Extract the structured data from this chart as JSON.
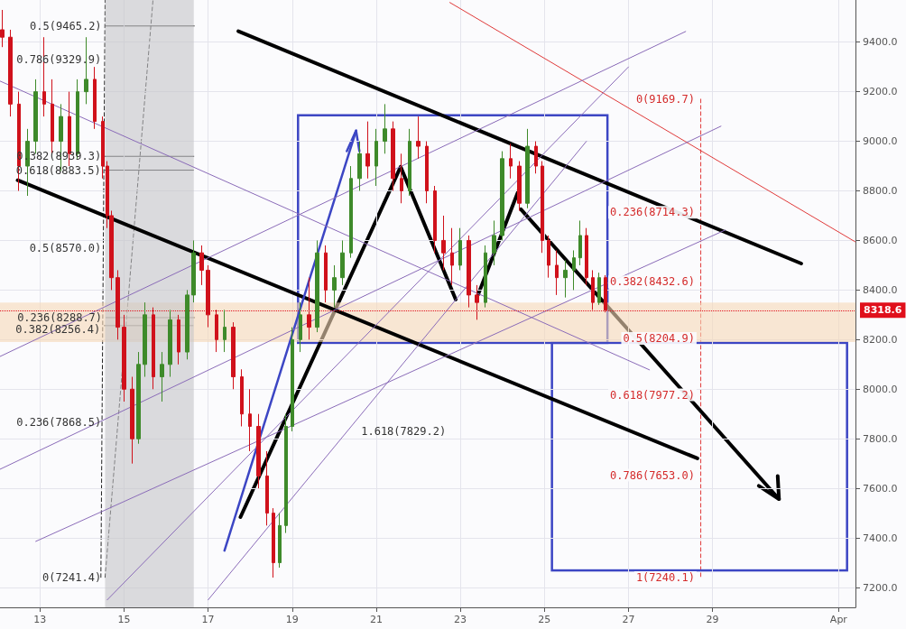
{
  "chart_data": {
    "type": "candlestick",
    "x": [
      12.1,
      12.3,
      12.5,
      12.7,
      12.9,
      13.1,
      13.3,
      13.5,
      13.7,
      13.9,
      14.1,
      14.3,
      14.5,
      14.6,
      14.7,
      14.85,
      15.0,
      15.2,
      15.35,
      15.5,
      15.7,
      15.9,
      16.1,
      16.3,
      16.5,
      16.65,
      16.85,
      17.0,
      17.2,
      17.4,
      17.6,
      17.8,
      18.0,
      18.2,
      18.4,
      18.55,
      18.7,
      18.85,
      19.0,
      19.2,
      19.4,
      19.6,
      19.8,
      20.0,
      20.2,
      20.4,
      20.6,
      20.8,
      21.0,
      21.2,
      21.4,
      21.6,
      21.8,
      22.0,
      22.2,
      22.4,
      22.6,
      22.8,
      23.0,
      23.2,
      23.4,
      23.6,
      23.8,
      24.0,
      24.2,
      24.4,
      24.6,
      24.8,
      24.95,
      25.1,
      25.3,
      25.5,
      25.7,
      25.85,
      26.0,
      26.15,
      26.3,
      26.45
    ],
    "ohlc": [
      [
        9450,
        9530,
        9380,
        9420
      ],
      [
        9420,
        9450,
        9100,
        9150
      ],
      [
        9150,
        9200,
        8800,
        8900
      ],
      [
        8900,
        9050,
        8780,
        9000
      ],
      [
        9000,
        9250,
        8950,
        9200
      ],
      [
        9200,
        9420,
        9100,
        9150
      ],
      [
        9150,
        9250,
        8950,
        9000
      ],
      [
        9000,
        9150,
        8880,
        9100
      ],
      [
        9100,
        9200,
        8900,
        8950
      ],
      [
        8950,
        9250,
        8930,
        9200
      ],
      [
        9200,
        9420,
        9150,
        9250
      ],
      [
        9250,
        9300,
        9050,
        9080
      ],
      [
        9080,
        9100,
        8850,
        8900
      ],
      [
        8900,
        8920,
        8650,
        8700
      ],
      [
        8700,
        8720,
        8400,
        8450
      ],
      [
        8450,
        8480,
        8200,
        8250
      ],
      [
        8250,
        8300,
        7950,
        8000
      ],
      [
        8000,
        8050,
        7700,
        7800
      ],
      [
        7800,
        8150,
        7780,
        8100
      ],
      [
        8100,
        8350,
        8050,
        8300
      ],
      [
        8300,
        8330,
        8000,
        8050
      ],
      [
        8050,
        8150,
        7950,
        8100
      ],
      [
        8100,
        8320,
        8050,
        8280
      ],
      [
        8280,
        8300,
        8100,
        8150
      ],
      [
        8150,
        8400,
        8120,
        8380
      ],
      [
        8380,
        8600,
        8350,
        8550
      ],
      [
        8550,
        8580,
        8420,
        8480
      ],
      [
        8480,
        8500,
        8250,
        8300
      ],
      [
        8300,
        8320,
        8150,
        8200
      ],
      [
        8200,
        8320,
        8150,
        8250
      ],
      [
        8250,
        8270,
        8000,
        8050
      ],
      [
        8050,
        8080,
        7850,
        7900
      ],
      [
        7900,
        8000,
        7750,
        7850
      ],
      [
        7850,
        7900,
        7600,
        7650
      ],
      [
        7650,
        7750,
        7450,
        7500
      ],
      [
        7500,
        7520,
        7240,
        7300
      ],
      [
        7300,
        7500,
        7280,
        7450
      ],
      [
        7450,
        7900,
        7420,
        7850
      ],
      [
        7850,
        8250,
        7830,
        8200
      ],
      [
        8200,
        8350,
        8150,
        8300
      ],
      [
        8300,
        8450,
        8200,
        8250
      ],
      [
        8250,
        8600,
        8230,
        8550
      ],
      [
        8550,
        8580,
        8350,
        8400
      ],
      [
        8400,
        8500,
        8330,
        8450
      ],
      [
        8450,
        8600,
        8420,
        8550
      ],
      [
        8550,
        8900,
        8530,
        8850
      ],
      [
        8850,
        9000,
        8800,
        8950
      ],
      [
        8950,
        9080,
        8850,
        8900
      ],
      [
        8900,
        9050,
        8820,
        9000
      ],
      [
        9000,
        9150,
        8950,
        9050
      ],
      [
        9050,
        9080,
        8800,
        8850
      ],
      [
        8850,
        8950,
        8750,
        8800
      ],
      [
        8800,
        9050,
        8780,
        9000
      ],
      [
        9000,
        9100,
        8930,
        8980
      ],
      [
        8980,
        9000,
        8750,
        8800
      ],
      [
        8800,
        8820,
        8550,
        8600
      ],
      [
        8600,
        8700,
        8480,
        8550
      ],
      [
        8550,
        8650,
        8420,
        8500
      ],
      [
        8500,
        8650,
        8480,
        8600
      ],
      [
        8600,
        8620,
        8330,
        8380
      ],
      [
        8380,
        8420,
        8280,
        8350
      ],
      [
        8350,
        8580,
        8330,
        8550
      ],
      [
        8550,
        8680,
        8500,
        8620
      ],
      [
        8620,
        8960,
        8600,
        8930
      ],
      [
        8930,
        8990,
        8850,
        8900
      ],
      [
        8900,
        8920,
        8720,
        8750
      ],
      [
        8750,
        9050,
        8730,
        8980
      ],
      [
        8980,
        9000,
        8870,
        8900
      ],
      [
        8900,
        8920,
        8550,
        8600
      ],
      [
        8600,
        8620,
        8450,
        8500
      ],
      [
        8500,
        8560,
        8380,
        8450
      ],
      [
        8450,
        8520,
        8370,
        8480
      ],
      [
        8480,
        8560,
        8400,
        8530
      ],
      [
        8530,
        8680,
        8500,
        8620
      ],
      [
        8620,
        8650,
        8420,
        8450
      ],
      [
        8450,
        8480,
        8320,
        8350
      ],
      [
        8350,
        8470,
        8340,
        8450
      ],
      [
        8450,
        8460,
        8310,
        8318.6
      ]
    ],
    "series": [
      {
        "type": "line",
        "color": "#000000",
        "x": [
          17.72,
          31.11
        ],
        "values": [
          9444,
          8507
        ]
      },
      {
        "type": "line",
        "color": "#000000",
        "x": [
          12.47,
          28.64
        ],
        "values": [
          8843,
          7721
        ]
      },
      {
        "type": "line",
        "color": "#e03a3a",
        "x": [
          22.75,
          32.39
        ],
        "values": [
          9560,
          8595
        ]
      },
      {
        "type": "line",
        "color": "#3c46c4",
        "x": [
          17.39,
          20.52
        ],
        "values": [
          7349,
          9043
        ]
      },
      {
        "type": "line",
        "color": "#8a6bb8",
        "x": [
          12.05,
          28.36
        ],
        "values": [
          8132,
          9443
        ]
      },
      {
        "type": "line",
        "color": "#8a6bb8",
        "x": [
          12.05,
          29.2
        ],
        "values": [
          7677,
          9061
        ]
      },
      {
        "type": "line",
        "color": "#8a6bb8",
        "x": [
          12.9,
          29.3
        ],
        "values": [
          7386,
          8642
        ]
      },
      {
        "type": "line",
        "color": "#8a6bb8",
        "x": [
          12.05,
          27.5
        ],
        "values": [
          9243,
          8078
        ]
      },
      {
        "type": "line",
        "color": "#8a6bb8",
        "x": [
          14.6,
          27.0
        ],
        "values": [
          7150,
          9300
        ]
      },
      {
        "type": "line",
        "color": "#8a6bb8",
        "x": [
          17.0,
          26.0
        ],
        "values": [
          7150,
          9000
        ]
      }
    ],
    "xlim": [
      12.05,
      32.4
    ],
    "xticks": [
      13,
      15,
      17,
      19,
      21,
      23,
      25,
      27,
      29,
      {
        "value": 32,
        "label": "Apr"
      }
    ],
    "ylim": [
      7120,
      9570
    ],
    "yticks": [
      {
        "value": 7200,
        "label": "7200.0"
      },
      {
        "value": 7400,
        "label": "7400.0"
      },
      {
        "value": 7600,
        "label": "7600.0"
      },
      {
        "value": 7800,
        "label": "7800.0"
      },
      {
        "value": 8000,
        "label": "8000.0"
      },
      {
        "value": 8200,
        "label": "8200.0"
      },
      {
        "value": 8400,
        "label": "8400.0"
      },
      {
        "value": 8600,
        "label": "8600.0"
      },
      {
        "value": 8800,
        "label": "8800.0"
      },
      {
        "value": 9000,
        "label": "9000.0"
      },
      {
        "value": 9200,
        "label": "9200.0"
      },
      {
        "value": 9400,
        "label": "9400.0"
      }
    ],
    "grid": true,
    "ref_lines": [
      {
        "axis": "y",
        "value": 8318.6,
        "label": "8318.6",
        "color": "#e0101b",
        "line_style": "dotted"
      }
    ],
    "bands": [
      {
        "axis": "y",
        "from": 8190,
        "to": 8350,
        "color": "#f7d9b8"
      },
      {
        "axis": "x",
        "from": 14.55,
        "to": 16.66,
        "color": "#c4c4c8"
      }
    ],
    "annotations": [
      {
        "text": "0.5(9465.2)",
        "x": 14.56,
        "y": 9465.2
      },
      "0.786(9329.9)",
      {
        "text": "0.382(8939.3)",
        "x": 14.55,
        "y": 8939.3
      },
      {
        "text": "0.618(8883.5)",
        "x": 14.54,
        "y": 8883.5
      },
      "0.5(8570.0)",
      {
        "text": "0.236(8288.7)",
        "x": 14.57,
        "y": 8288.7
      },
      {
        "text": "0.382(8256.4)",
        "x": 14.53,
        "y": 8256.4
      },
      "0.236(7868.5)",
      "0(7241.4)",
      "1.618(7829.2)",
      "0(9169.7)",
      "0.236(8714.3)",
      "0.382(8432.6)",
      "0.5(8204.9)",
      "0.618(7977.2)",
      "0.786(7653.0)",
      "1(7240.1)"
    ]
  }
}
